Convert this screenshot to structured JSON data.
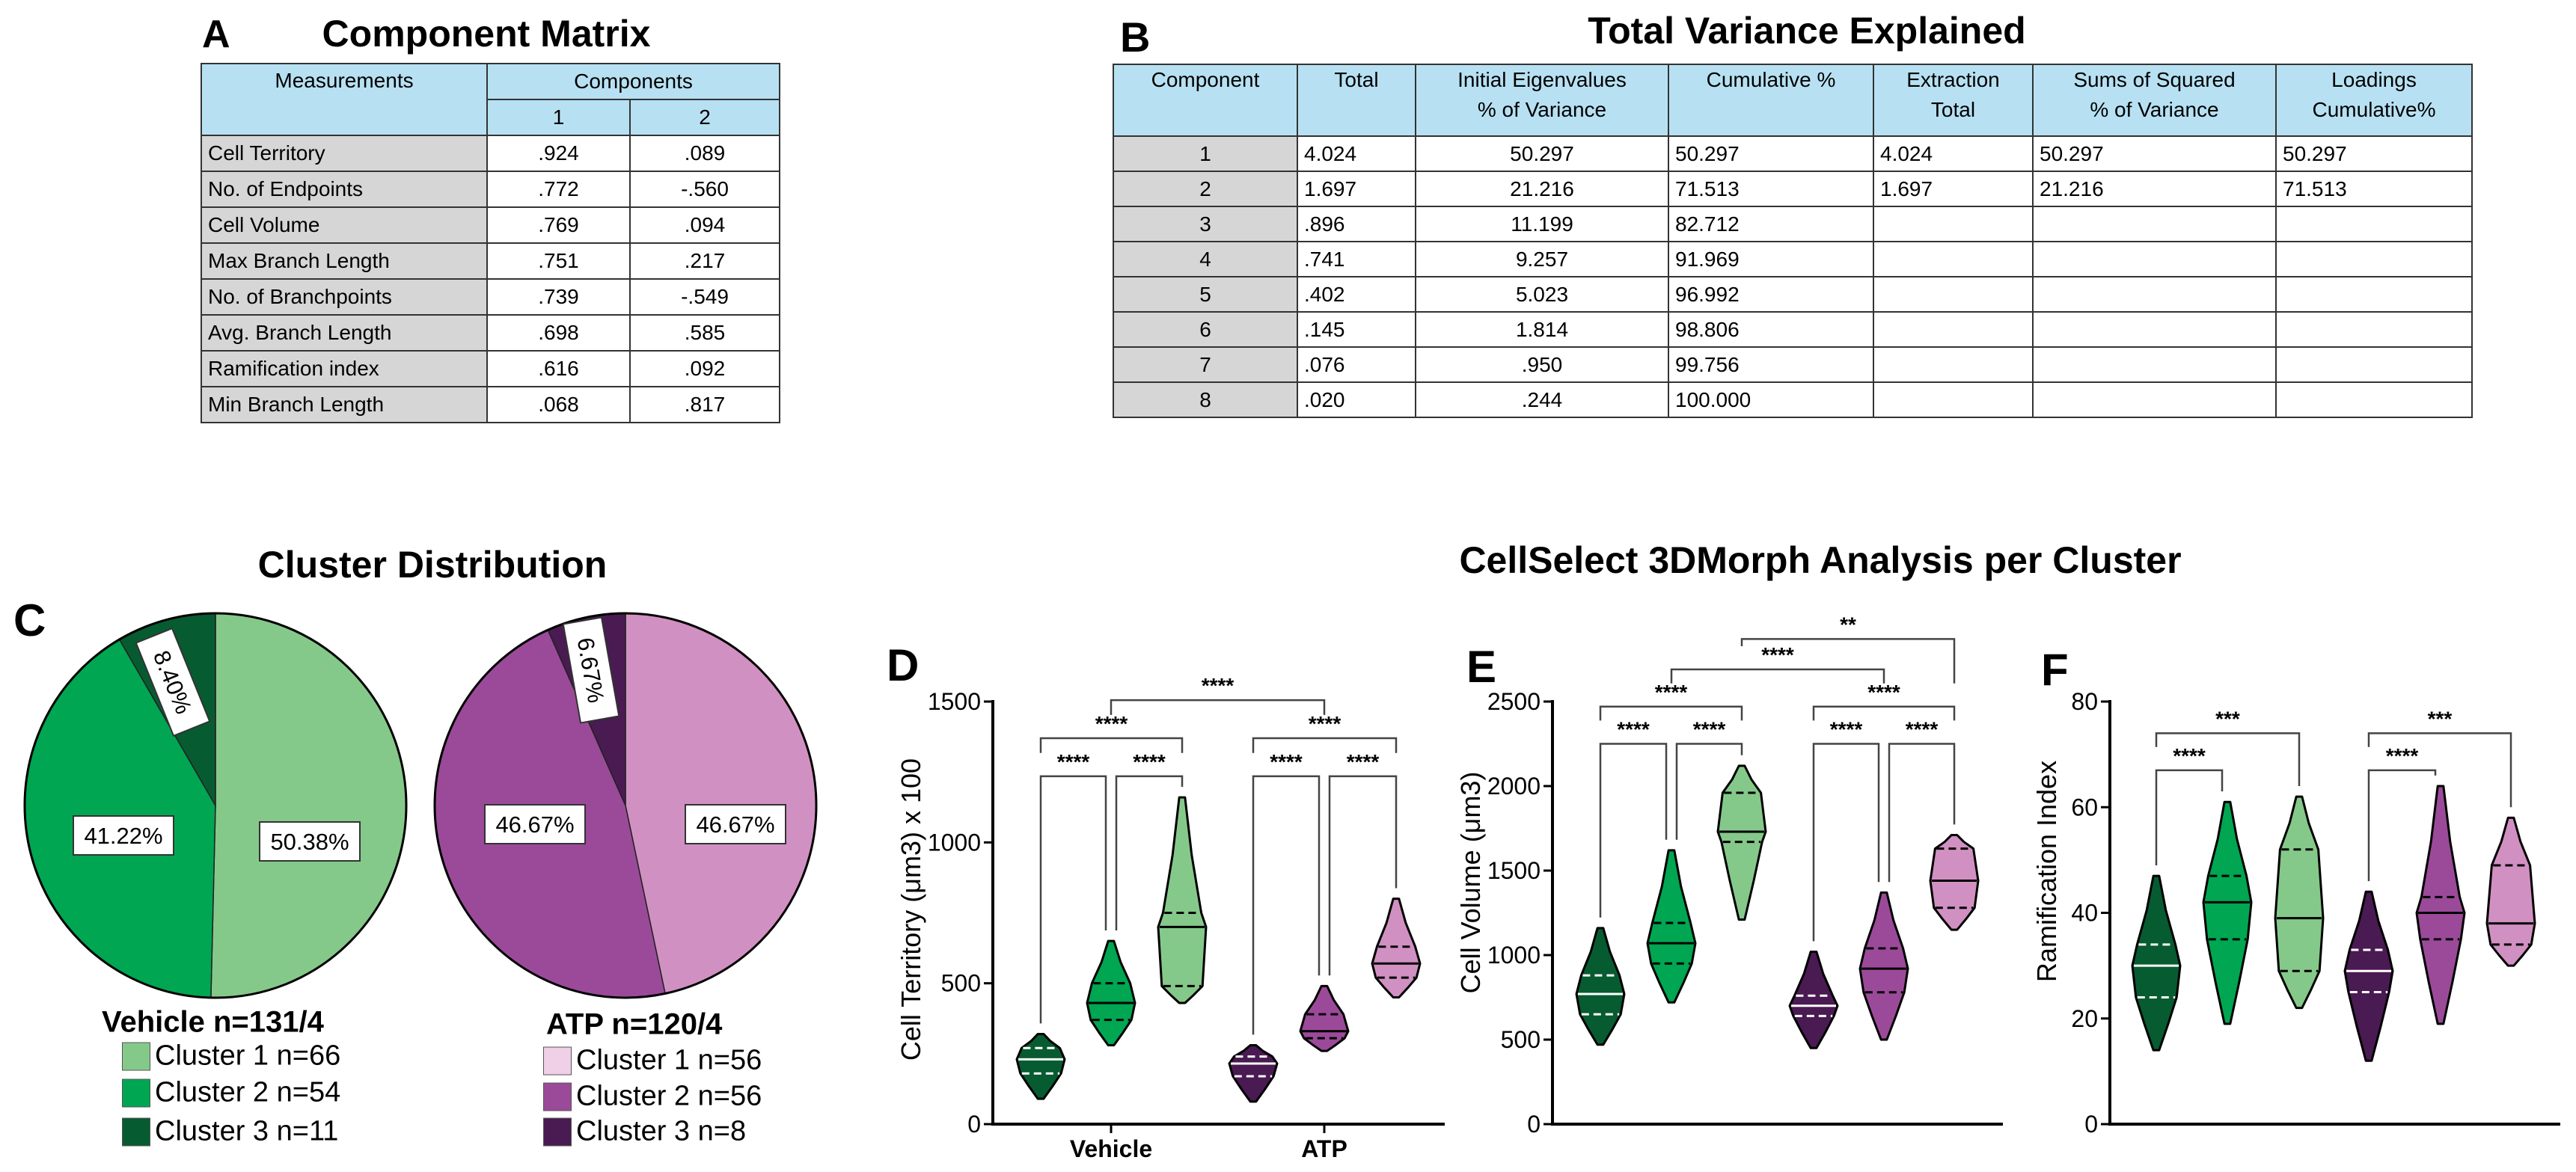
{
  "panel_labels": {
    "a": "A",
    "b": "B",
    "c": "C",
    "d": "D",
    "e": "E",
    "f": "F"
  },
  "component_matrix": {
    "title": "Component Matrix",
    "header_measurements": "Measurements",
    "header_components": "Components",
    "component_numbers": [
      "1",
      "2"
    ],
    "rows": [
      [
        "Cell Territory",
        ".924",
        ".089"
      ],
      [
        "No. of Endpoints",
        ".772",
        "-.560"
      ],
      [
        "Cell Volume",
        ".769",
        ".094"
      ],
      [
        "Max Branch Length",
        ".751",
        ".217"
      ],
      [
        "No. of Branchpoints",
        ".739",
        "-.549"
      ],
      [
        "Avg. Branch Length",
        ".698",
        ".585"
      ],
      [
        "Ramification index",
        ".616",
        ".092"
      ],
      [
        "Min Branch Length",
        ".068",
        ".817"
      ]
    ]
  },
  "variance_table": {
    "title": "Total Variance Explained",
    "header_line1": [
      "Component",
      "Total",
      "Initial Eigenvalues",
      "Cumulative %",
      "Extraction",
      "Sums of Squared",
      "Loadings"
    ],
    "header_line2": [
      "",
      "",
      "% of Variance",
      "",
      "Total",
      "% of Variance",
      "Cumulative%"
    ],
    "rows": [
      [
        "1",
        "4.024",
        "50.297",
        "50.297",
        "4.024",
        "50.297",
        "50.297"
      ],
      [
        "2",
        "1.697",
        "21.216",
        "71.513",
        "1.697",
        "21.216",
        "71.513"
      ],
      [
        "3",
        ".896",
        "11.199",
        "82.712",
        "",
        "",
        ""
      ],
      [
        "4",
        ".741",
        "9.257",
        "91.969",
        "",
        "",
        ""
      ],
      [
        "5",
        ".402",
        "5.023",
        "96.992",
        "",
        "",
        ""
      ],
      [
        "6",
        ".145",
        "1.814",
        "98.806",
        "",
        "",
        ""
      ],
      [
        "7",
        ".076",
        ".950",
        "99.756",
        "",
        "",
        ""
      ],
      [
        "8",
        ".020",
        ".244",
        "100.000",
        "",
        "",
        ""
      ]
    ]
  },
  "cluster_distribution": {
    "title": "Cluster Distribution"
  },
  "morph_analysis": {
    "title": "CellSelect 3DMorph Analysis per Cluster"
  },
  "chart_data": [
    {
      "type": "pie",
      "title": "Vehicle n=131/4",
      "start": "top",
      "direction": "clockwise",
      "slices": [
        {
          "label": "Cluster 1 n=66",
          "value": 50.38,
          "data_label": "50.38%",
          "color": "#85c98a",
          "legend_color": "#85c98a"
        },
        {
          "label": "Cluster 2 n=54",
          "value": 41.22,
          "data_label": "41.22%",
          "color": "#00a651",
          "legend_color": "#00a651"
        },
        {
          "label": "Cluster 3 n=11",
          "value": 8.4,
          "data_label": "8.40%",
          "color": "#075b30",
          "legend_color": "#075b30"
        }
      ]
    },
    {
      "type": "pie",
      "title": "ATP n=120/4",
      "start": "top",
      "direction": "clockwise",
      "slices": [
        {
          "label": "Cluster 1 n=56",
          "value": 46.67,
          "data_label": "46.67%",
          "color": "#d190c2",
          "legend_color": "#f0d0e6"
        },
        {
          "label": "Cluster 2 n=56",
          "value": 46.67,
          "data_label": "46.67%",
          "color": "#9b4a99",
          "legend_color": "#9b4a99"
        },
        {
          "label": "Cluster 3 n=8",
          "value": 6.67,
          "data_label": "6.67%",
          "color": "#4a1a52",
          "legend_color": "#4a1a52"
        }
      ]
    },
    {
      "type": "violin",
      "ylabel": "Cell Territory (μm3) x 100",
      "ylim": [
        0,
        1500
      ],
      "yticks": [
        "0",
        "500",
        "1000",
        "1500"
      ],
      "categories": [
        "Vehicle",
        "ATP"
      ],
      "violins": [
        {
          "color": "#075b30",
          "line_color": "#ffffff",
          "min": 90,
          "q1": 180,
          "median": 230,
          "q3": 270,
          "max": 320
        },
        {
          "color": "#00a651",
          "line_color": "#000000",
          "min": 280,
          "q1": 370,
          "median": 430,
          "q3": 500,
          "max": 650
        },
        {
          "color": "#85c98a",
          "line_color": "#000000",
          "min": 430,
          "q1": 490,
          "median": 700,
          "q3": 750,
          "max": 1160
        },
        {
          "color": "#4a1a52",
          "line_color": "#ffffff",
          "min": 80,
          "q1": 170,
          "median": 215,
          "q3": 240,
          "max": 280
        },
        {
          "color": "#9b4a99",
          "line_color": "#000000",
          "min": 260,
          "q1": 305,
          "median": 330,
          "q3": 390,
          "max": 490
        },
        {
          "color": "#d190c2",
          "line_color": "#000000",
          "min": 450,
          "q1": 520,
          "median": 570,
          "q3": 630,
          "max": 800
        }
      ],
      "comparisons": [
        {
          "a": 0,
          "b": 1,
          "label": "****"
        },
        {
          "a": 1,
          "b": 2,
          "label": "****"
        },
        {
          "a": 0,
          "b": 2,
          "label": "****"
        },
        {
          "a": 3,
          "b": 4,
          "label": "****"
        },
        {
          "a": 4,
          "b": 5,
          "label": "****"
        },
        {
          "a": 3,
          "b": 5,
          "label": "****"
        },
        {
          "a": 1,
          "b": 4,
          "label": "****"
        }
      ]
    },
    {
      "type": "violin",
      "ylabel": "Cell Volume (μm3)",
      "ylim": [
        0,
        2500
      ],
      "yticks": [
        "0",
        "500",
        "1000",
        "1500",
        "2000",
        "2500"
      ],
      "categories": [],
      "violins": [
        {
          "color": "#075b30",
          "line_color": "#ffffff",
          "min": 470,
          "q1": 650,
          "median": 770,
          "q3": 880,
          "max": 1160
        },
        {
          "color": "#00a651",
          "line_color": "#000000",
          "min": 720,
          "q1": 950,
          "median": 1070,
          "q3": 1190,
          "max": 1620
        },
        {
          "color": "#85c98a",
          "line_color": "#000000",
          "min": 1210,
          "q1": 1670,
          "median": 1730,
          "q3": 1960,
          "max": 2120
        },
        {
          "color": "#4a1a52",
          "line_color": "#ffffff",
          "min": 450,
          "q1": 640,
          "median": 700,
          "q3": 760,
          "max": 1020
        },
        {
          "color": "#9b4a99",
          "line_color": "#000000",
          "min": 500,
          "q1": 780,
          "median": 920,
          "q3": 1040,
          "max": 1370
        },
        {
          "color": "#d190c2",
          "line_color": "#000000",
          "min": 1150,
          "q1": 1280,
          "median": 1440,
          "q3": 1630,
          "max": 1710
        }
      ],
      "comparisons": [
        {
          "a": 0,
          "b": 1,
          "label": "****"
        },
        {
          "a": 1,
          "b": 2,
          "label": "****"
        },
        {
          "a": 0,
          "b": 2,
          "label": "****"
        },
        {
          "a": 3,
          "b": 4,
          "label": "****"
        },
        {
          "a": 4,
          "b": 5,
          "label": "****"
        },
        {
          "a": 3,
          "b": 5,
          "label": "****"
        },
        {
          "a": 1,
          "b": 4,
          "label": "****"
        },
        {
          "a": 2,
          "b": 5,
          "label": "**"
        }
      ]
    },
    {
      "type": "violin",
      "ylabel": "Ramification Index",
      "ylim": [
        0,
        80
      ],
      "yticks": [
        "0",
        "20",
        "40",
        "60",
        "80"
      ],
      "categories": [],
      "violins": [
        {
          "color": "#075b30",
          "line_color": "#ffffff",
          "min": 14,
          "q1": 24,
          "median": 30,
          "q3": 34,
          "max": 47
        },
        {
          "color": "#00a651",
          "line_color": "#000000",
          "min": 19,
          "q1": 35,
          "median": 42,
          "q3": 47,
          "max": 61
        },
        {
          "color": "#85c98a",
          "line_color": "#000000",
          "min": 22,
          "q1": 29,
          "median": 39,
          "q3": 52,
          "max": 62
        },
        {
          "color": "#4a1a52",
          "line_color": "#ffffff",
          "min": 12,
          "q1": 25,
          "median": 29,
          "q3": 33,
          "max": 44
        },
        {
          "color": "#9b4a99",
          "line_color": "#000000",
          "min": 19,
          "q1": 35,
          "median": 40,
          "q3": 43,
          "max": 64
        },
        {
          "color": "#d190c2",
          "line_color": "#000000",
          "min": 30,
          "q1": 34,
          "median": 38,
          "q3": 49,
          "max": 58
        }
      ],
      "comparisons": [
        {
          "a": 0,
          "b": 1,
          "label": "****"
        },
        {
          "a": 0,
          "b": 2,
          "label": "***"
        },
        {
          "a": 3,
          "b": 4,
          "label": "****"
        },
        {
          "a": 3,
          "b": 5,
          "label": "***"
        }
      ]
    }
  ]
}
